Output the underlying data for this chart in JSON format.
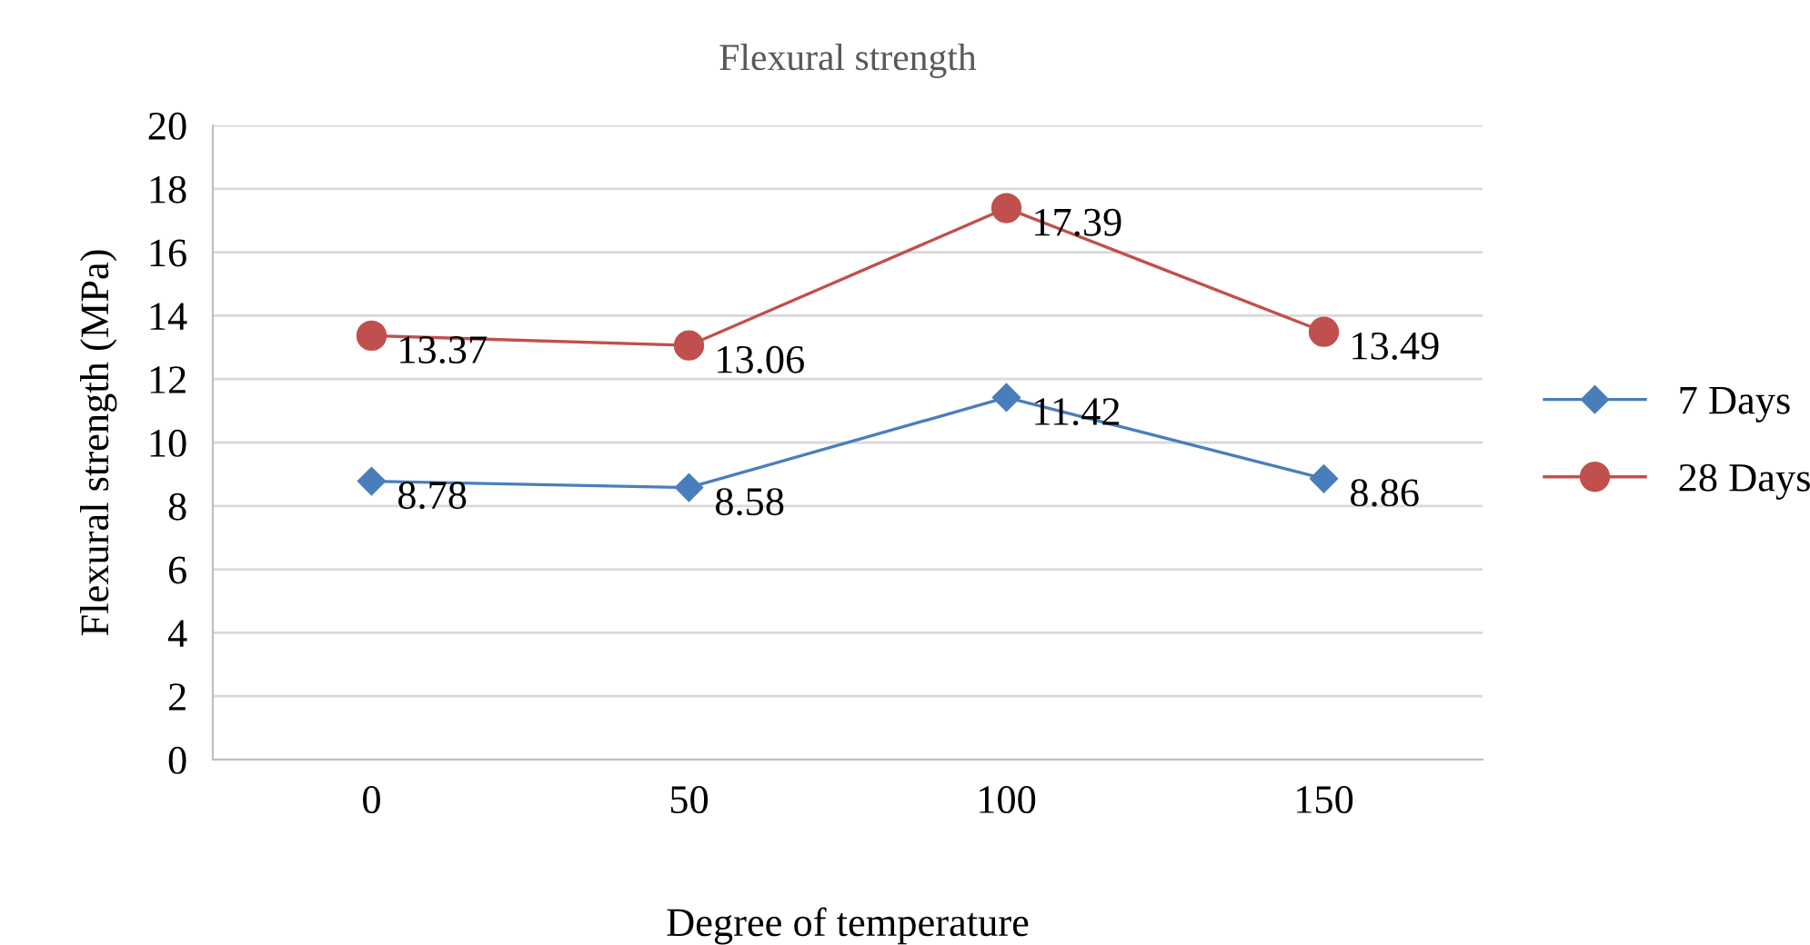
{
  "chart_data": {
    "type": "line",
    "title": "Flexural strength",
    "xlabel": "Degree of temperature",
    "ylabel": "Flexural strength (MPa)",
    "categories": [
      "0",
      "50",
      "100",
      "150"
    ],
    "series": [
      {
        "name": "7 Days",
        "color": "#4a7ebb",
        "marker": "diamond",
        "values": [
          8.78,
          8.58,
          11.42,
          8.86
        ]
      },
      {
        "name": "28 Days",
        "color": "#c0504d",
        "marker": "circle",
        "values": [
          13.37,
          13.06,
          17.39,
          13.49
        ]
      }
    ],
    "ylim": [
      0,
      20
    ],
    "yticks": [
      0,
      2,
      4,
      6,
      8,
      10,
      12,
      14,
      16,
      18,
      20
    ],
    "grid": "y",
    "legend": "right",
    "data_labels": true,
    "line_style": "solid"
  }
}
